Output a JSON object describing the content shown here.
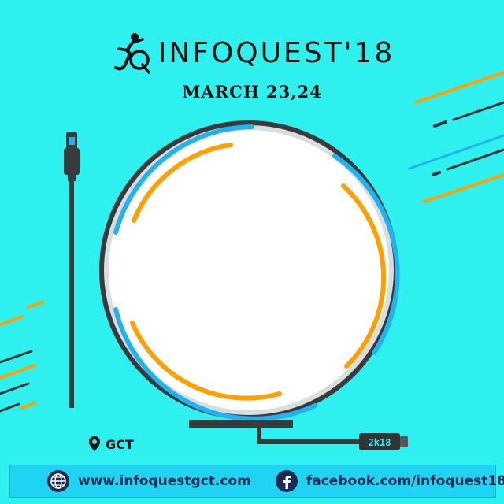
{
  "header": {
    "logo_icon": "jq-dancer-logo-icon",
    "title": "INFOQUEST'18",
    "date": "MARCH 23,24"
  },
  "location": {
    "icon": "map-pin-icon",
    "label": "GCT"
  },
  "usb_label": "2k18",
  "footer": {
    "website_icon": "globe-icon",
    "website": "www.infoquestgct.com",
    "facebook_icon": "facebook-icon",
    "facebook": "facebook.com/infoquest18"
  },
  "colors": {
    "background": "#2ef0ef",
    "ring_blue": "#1fb4f0",
    "ring_orange": "#ffa000",
    "cable": "#3a3a3a",
    "footer_bar": "#1fd4f2"
  }
}
